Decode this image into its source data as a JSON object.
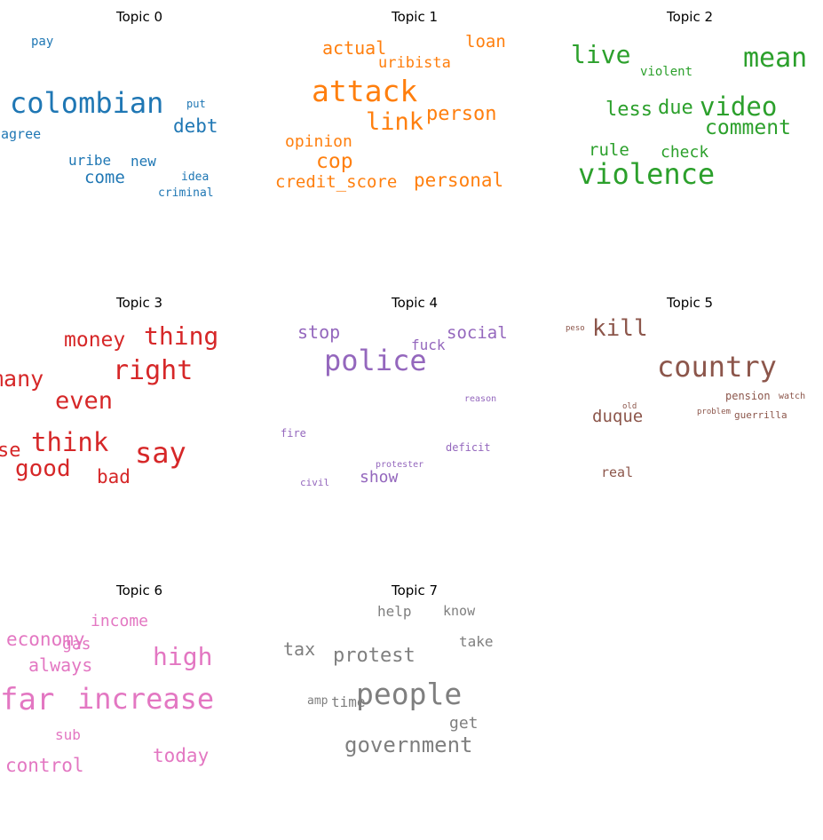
{
  "chart_data": [
    {
      "type": "wordcloud",
      "title": "Topic 0",
      "color": "#1f77b4",
      "words": [
        {
          "text": "pay",
          "weight": 14
        },
        {
          "text": "colombian",
          "weight": 32
        },
        {
          "text": "put",
          "weight": 12
        },
        {
          "text": "agree",
          "weight": 15
        },
        {
          "text": "debt",
          "weight": 21
        },
        {
          "text": "uribe",
          "weight": 16
        },
        {
          "text": "new",
          "weight": 16
        },
        {
          "text": "come",
          "weight": 19
        },
        {
          "text": "idea",
          "weight": 13
        },
        {
          "text": "criminal",
          "weight": 13
        }
      ]
    },
    {
      "type": "wordcloud",
      "title": "Topic 1",
      "color": "#ff7f0e",
      "words": [
        {
          "text": "actual",
          "weight": 20
        },
        {
          "text": "loan",
          "weight": 19
        },
        {
          "text": "uribista",
          "weight": 17
        },
        {
          "text": "attack",
          "weight": 33
        },
        {
          "text": "link",
          "weight": 27
        },
        {
          "text": "person",
          "weight": 22
        },
        {
          "text": "opinion",
          "weight": 18
        },
        {
          "text": "cop",
          "weight": 23
        },
        {
          "text": "credit_score",
          "weight": 19
        },
        {
          "text": "personal",
          "weight": 21
        }
      ]
    },
    {
      "type": "wordcloud",
      "title": "Topic 2",
      "color": "#2ca02c",
      "words": [
        {
          "text": "live",
          "weight": 28
        },
        {
          "text": "violent",
          "weight": 14
        },
        {
          "text": "mean",
          "weight": 30
        },
        {
          "text": "less",
          "weight": 22
        },
        {
          "text": "due",
          "weight": 22
        },
        {
          "text": "video",
          "weight": 29
        },
        {
          "text": "comment",
          "weight": 23
        },
        {
          "text": "rule",
          "weight": 19
        },
        {
          "text": "check",
          "weight": 18
        },
        {
          "text": "violence",
          "weight": 32
        }
      ]
    },
    {
      "type": "wordcloud",
      "title": "Topic 3",
      "color": "#d62728",
      "words": [
        {
          "text": "money",
          "weight": 23
        },
        {
          "text": "thing",
          "weight": 28
        },
        {
          "text": "right",
          "weight": 30
        },
        {
          "text": "many",
          "weight": 25
        },
        {
          "text": "even",
          "weight": 27
        },
        {
          "text": "think",
          "weight": 29
        },
        {
          "text": "say",
          "weight": 32
        },
        {
          "text": "good",
          "weight": 26
        },
        {
          "text": "bad",
          "weight": 21
        },
        {
          "text": "se",
          "weight": 22
        }
      ]
    },
    {
      "type": "wordcloud",
      "title": "Topic 4",
      "color": "#9467bd",
      "words": [
        {
          "text": "stop",
          "weight": 20
        },
        {
          "text": "social",
          "weight": 19
        },
        {
          "text": "fuck",
          "weight": 16
        },
        {
          "text": "police",
          "weight": 32
        },
        {
          "text": "reason",
          "weight": 10
        },
        {
          "text": "fire",
          "weight": 12
        },
        {
          "text": "deficit",
          "weight": 12
        },
        {
          "text": "protester",
          "weight": 10
        },
        {
          "text": "civil",
          "weight": 11
        },
        {
          "text": "show",
          "weight": 18
        }
      ]
    },
    {
      "type": "wordcloud",
      "title": "Topic 5",
      "color": "#8c564b",
      "words": [
        {
          "text": "peso",
          "weight": 9
        },
        {
          "text": "kill",
          "weight": 26
        },
        {
          "text": "country",
          "weight": 32
        },
        {
          "text": "pension",
          "weight": 12
        },
        {
          "text": "watch",
          "weight": 10
        },
        {
          "text": "old",
          "weight": 9
        },
        {
          "text": "duque",
          "weight": 19
        },
        {
          "text": "problem",
          "weight": 9
        },
        {
          "text": "guerrilla",
          "weight": 11
        },
        {
          "text": "real",
          "weight": 15
        }
      ]
    },
    {
      "type": "wordcloud",
      "title": "Topic 6",
      "color": "#e377c2",
      "words": [
        {
          "text": "income",
          "weight": 18
        },
        {
          "text": "economy",
          "weight": 21
        },
        {
          "text": "gas",
          "weight": 18
        },
        {
          "text": "always",
          "weight": 20
        },
        {
          "text": "high",
          "weight": 28
        },
        {
          "text": "far",
          "weight": 34
        },
        {
          "text": "increase",
          "weight": 32
        },
        {
          "text": "sub",
          "weight": 16
        },
        {
          "text": "today",
          "weight": 21
        },
        {
          "text": "control",
          "weight": 21
        }
      ]
    },
    {
      "type": "wordcloud",
      "title": "Topic 7",
      "color": "#7f7f7f",
      "words": [
        {
          "text": "help",
          "weight": 16
        },
        {
          "text": "know",
          "weight": 15
        },
        {
          "text": "take",
          "weight": 16
        },
        {
          "text": "tax",
          "weight": 20
        },
        {
          "text": "protest",
          "weight": 22
        },
        {
          "text": "amp",
          "weight": 13
        },
        {
          "text": "time",
          "weight": 16
        },
        {
          "text": "people",
          "weight": 33
        },
        {
          "text": "get",
          "weight": 18
        },
        {
          "text": "government",
          "weight": 24
        }
      ]
    }
  ]
}
